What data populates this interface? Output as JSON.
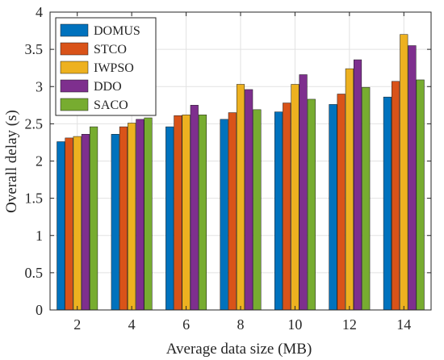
{
  "chart_data": {
    "type": "bar",
    "title": "",
    "xlabel": "Average data size (MB)",
    "ylabel": "Overall delay (s)",
    "categories": [
      "2",
      "4",
      "6",
      "8",
      "10",
      "12",
      "14"
    ],
    "ylim": [
      0,
      4
    ],
    "yticks": [
      "0",
      "0.5",
      "1",
      "1.5",
      "2",
      "2.5",
      "3",
      "3.5",
      "4"
    ],
    "grid": true,
    "legend_position": "top-left",
    "series": [
      {
        "name": "DOMUS",
        "color": "#0072BD",
        "values": [
          2.26,
          2.36,
          2.46,
          2.56,
          2.66,
          2.76,
          2.86
        ]
      },
      {
        "name": "STCO",
        "color": "#D95319",
        "values": [
          2.31,
          2.46,
          2.61,
          2.65,
          2.78,
          2.9,
          3.07
        ]
      },
      {
        "name": "IWPSO",
        "color": "#EDB120",
        "values": [
          2.33,
          2.51,
          2.62,
          3.03,
          3.03,
          3.24,
          3.7
        ]
      },
      {
        "name": "DDO",
        "color": "#7E2F8E",
        "values": [
          2.36,
          2.56,
          2.75,
          2.96,
          3.16,
          3.36,
          3.55
        ]
      },
      {
        "name": "SACO",
        "color": "#77AC30",
        "values": [
          2.46,
          2.58,
          2.62,
          2.69,
          2.83,
          2.99,
          3.09
        ]
      }
    ]
  }
}
